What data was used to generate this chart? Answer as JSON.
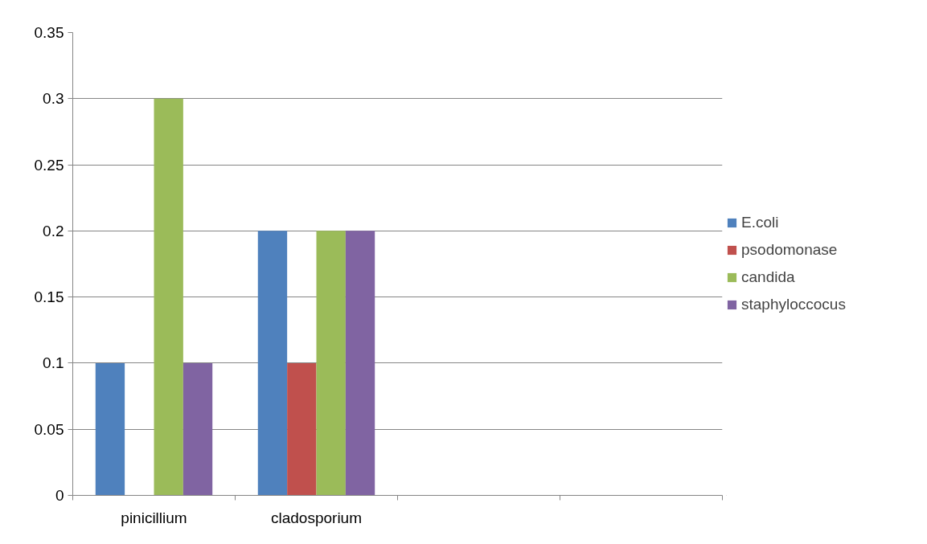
{
  "chart_data": {
    "type": "bar",
    "categories": [
      "pinicillium",
      "cladosporium",
      null,
      null
    ],
    "series": [
      {
        "name": "E.coli",
        "color": "#4f81bd",
        "values": [
          0.1,
          0.2,
          null,
          null
        ]
      },
      {
        "name": "psodomonase",
        "color": "#c0504d",
        "values": [
          0,
          0.1,
          null,
          null
        ]
      },
      {
        "name": "candida",
        "color": "#9bbb59",
        "values": [
          0.3,
          0.2,
          null,
          null
        ]
      },
      {
        "name": "staphyloccocus",
        "color": "#8064a2",
        "values": [
          0.1,
          0.2,
          null,
          null
        ]
      }
    ],
    "ylim": [
      0,
      0.35
    ],
    "yticks": [
      0,
      0.05,
      0.1,
      0.15,
      0.2,
      0.25,
      0.3,
      0.35
    ],
    "grid": "y",
    "legend": "right"
  }
}
